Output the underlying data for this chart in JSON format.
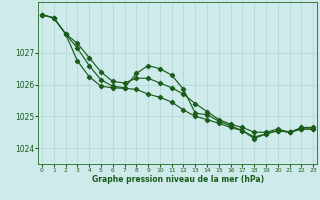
{
  "xlabel": "Graphe pression niveau de la mer (hPa)",
  "background_color": "#ceeaea",
  "grid_color": "#b8dada",
  "line_color": "#1a5c1a",
  "ylim": [
    1023.5,
    1028.6
  ],
  "xlim": [
    -0.3,
    23.3
  ],
  "yticks": [
    1024,
    1025,
    1026,
    1027
  ],
  "xticks": [
    0,
    1,
    2,
    3,
    4,
    5,
    6,
    7,
    8,
    9,
    10,
    11,
    12,
    13,
    14,
    15,
    16,
    17,
    18,
    19,
    20,
    21,
    22,
    23
  ],
  "series1_x": [
    0,
    1,
    2,
    3,
    4,
    5,
    6,
    7,
    8,
    9,
    10,
    11,
    12,
    13,
    14,
    15,
    16,
    17,
    18,
    19,
    20,
    21,
    22,
    23
  ],
  "series1_y": [
    1028.2,
    1028.1,
    1027.6,
    1027.3,
    1026.85,
    1026.4,
    1026.1,
    1026.05,
    1026.2,
    1026.2,
    1026.05,
    1025.9,
    1025.7,
    1025.4,
    1025.15,
    1024.9,
    1024.75,
    1024.65,
    1024.5,
    1024.5,
    1024.6,
    1024.5,
    1024.65,
    1024.65
  ],
  "series2_x": [
    0,
    1,
    2,
    3,
    4,
    5,
    6,
    7,
    8,
    9,
    10,
    11,
    12,
    13,
    14,
    15,
    16,
    17,
    18,
    19,
    20,
    21,
    22,
    23
  ],
  "series2_y": [
    1028.2,
    1028.1,
    1027.6,
    1027.15,
    1026.6,
    1026.15,
    1025.95,
    1025.9,
    1026.35,
    1026.6,
    1026.5,
    1026.3,
    1025.85,
    1025.1,
    1025.05,
    1024.85,
    1024.7,
    1024.55,
    1024.3,
    1024.45,
    1024.55,
    1024.5,
    1024.6,
    1024.6
  ],
  "series3_x": [
    0,
    1,
    2,
    3,
    4,
    5,
    6,
    7,
    8,
    9,
    10,
    11,
    12,
    13,
    14,
    15,
    16,
    17,
    18,
    19,
    20,
    21,
    22,
    23
  ],
  "series3_y": [
    1028.2,
    1028.1,
    1027.6,
    1026.75,
    1026.25,
    1025.95,
    1025.9,
    1025.88,
    1025.85,
    1025.7,
    1025.6,
    1025.45,
    1025.2,
    1025.0,
    1024.9,
    1024.78,
    1024.65,
    1024.55,
    1024.35,
    1024.45,
    1024.55,
    1024.5,
    1024.6,
    1024.6
  ]
}
